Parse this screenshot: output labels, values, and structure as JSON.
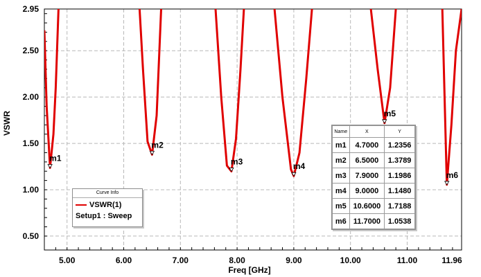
{
  "chart_data": {
    "type": "line",
    "xlabel": "Freq [GHz]",
    "ylabel": "VSWR",
    "xlim": [
      4.6,
      11.96
    ],
    "ylim": [
      0.35,
      2.95
    ],
    "x_ticks": [
      "5.00",
      "6.00",
      "7.00",
      "8.00",
      "9.00",
      "10.00",
      "11.00",
      "11.96"
    ],
    "y_ticks": [
      "0.50",
      "1.00",
      "1.50",
      "2.00",
      "2.50",
      "2.95"
    ],
    "series": [
      {
        "name": "VSWR(1)",
        "color": "#e00000",
        "segments": [
          [
            [
              4.6,
              2.72
            ],
            [
              4.64,
              1.9
            ],
            [
              4.7,
              1.236
            ],
            [
              4.76,
              1.6
            ],
            [
              4.8,
              2.1
            ],
            [
              4.85,
              2.95
            ]
          ],
          [
            [
              6.28,
              2.95
            ],
            [
              6.34,
              2.3
            ],
            [
              6.42,
              1.52
            ],
            [
              6.5,
              1.379
            ],
            [
              6.58,
              1.8
            ],
            [
              6.66,
              2.95
            ]
          ],
          [
            [
              7.62,
              2.95
            ],
            [
              7.72,
              2.0
            ],
            [
              7.82,
              1.26
            ],
            [
              7.9,
              1.199
            ],
            [
              7.98,
              1.55
            ],
            [
              8.06,
              2.3
            ],
            [
              8.12,
              2.95
            ]
          ],
          [
            [
              8.66,
              2.95
            ],
            [
              8.8,
              2.0
            ],
            [
              8.95,
              1.22
            ],
            [
              9.0,
              1.148
            ],
            [
              9.1,
              1.4
            ],
            [
              9.22,
              2.2
            ],
            [
              9.32,
              2.95
            ]
          ],
          [
            [
              10.36,
              2.95
            ],
            [
              10.48,
              2.3
            ],
            [
              10.6,
              1.719
            ],
            [
              10.7,
              2.1
            ],
            [
              10.8,
              2.95
            ]
          ],
          [
            [
              11.62,
              2.95
            ],
            [
              11.7,
              1.055
            ],
            [
              11.78,
              1.7
            ],
            [
              11.86,
              2.5
            ],
            [
              11.96,
              2.95
            ]
          ]
        ]
      }
    ],
    "markers": [
      {
        "name": "m1",
        "x": 4.7,
        "y": 1.2356
      },
      {
        "name": "m2",
        "x": 6.5,
        "y": 1.3789
      },
      {
        "name": "m3",
        "x": 7.9,
        "y": 1.1986
      },
      {
        "name": "m4",
        "x": 9.0,
        "y": 1.148
      },
      {
        "name": "m5",
        "x": 10.6,
        "y": 1.7188
      },
      {
        "name": "m6",
        "x": 11.7,
        "y": 1.0538
      }
    ],
    "grid": true,
    "grid_color": "#b8b8b8",
    "legend": {
      "title": "Curve Info",
      "entries": [
        "VSWR(1)",
        "Setup1 : Sweep"
      ]
    },
    "marker_table": {
      "headers": [
        "Name",
        "X",
        "Y"
      ],
      "rows": [
        [
          "m1",
          "4.7000",
          "1.2356"
        ],
        [
          "m2",
          "6.5000",
          "1.3789"
        ],
        [
          "m3",
          "7.9000",
          "1.1986"
        ],
        [
          "m4",
          "9.0000",
          "1.1480"
        ],
        [
          "m5",
          "10.6000",
          "1.7188"
        ],
        [
          "m6",
          "11.7000",
          "1.0538"
        ]
      ]
    }
  }
}
